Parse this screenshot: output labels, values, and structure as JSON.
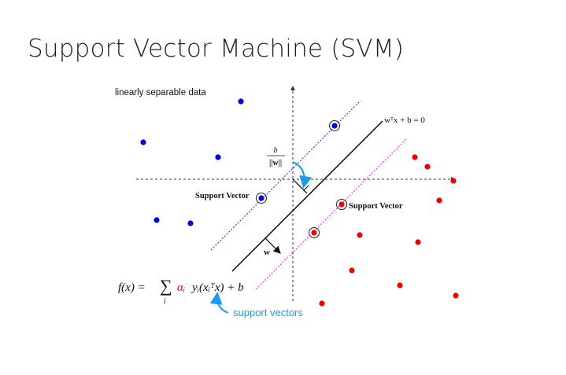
{
  "title": "Support Vector Machine (SVM)",
  "figure": {
    "data_label": "linearly separable data",
    "hyperplane_label": "wᵀx + b = 0",
    "margin_fraction": {
      "numerator": "b",
      "denominator": "||w||"
    },
    "support_vector_label_left": "Support Vector",
    "support_vector_label_right": "Support Vector",
    "normal_vector_label": "w",
    "formula": {
      "lhs": "f(x) = ",
      "sum": "∑",
      "sum_index": "i",
      "alpha": "αᵢ",
      "rest": "yᵢ(xᵢᵀx) + b"
    },
    "annotation": "support vectors",
    "colors": {
      "class_negative": "#0000dd",
      "class_positive": "#ee0000",
      "margin_negative_line": "#3a3ad8",
      "margin_positive_line": "#ee33ee",
      "annotation": "#1a9bf0",
      "axes": "#333333"
    },
    "classes": [
      {
        "name": "blue",
        "color_key": "class_negative"
      },
      {
        "name": "red",
        "color_key": "class_positive"
      }
    ]
  }
}
